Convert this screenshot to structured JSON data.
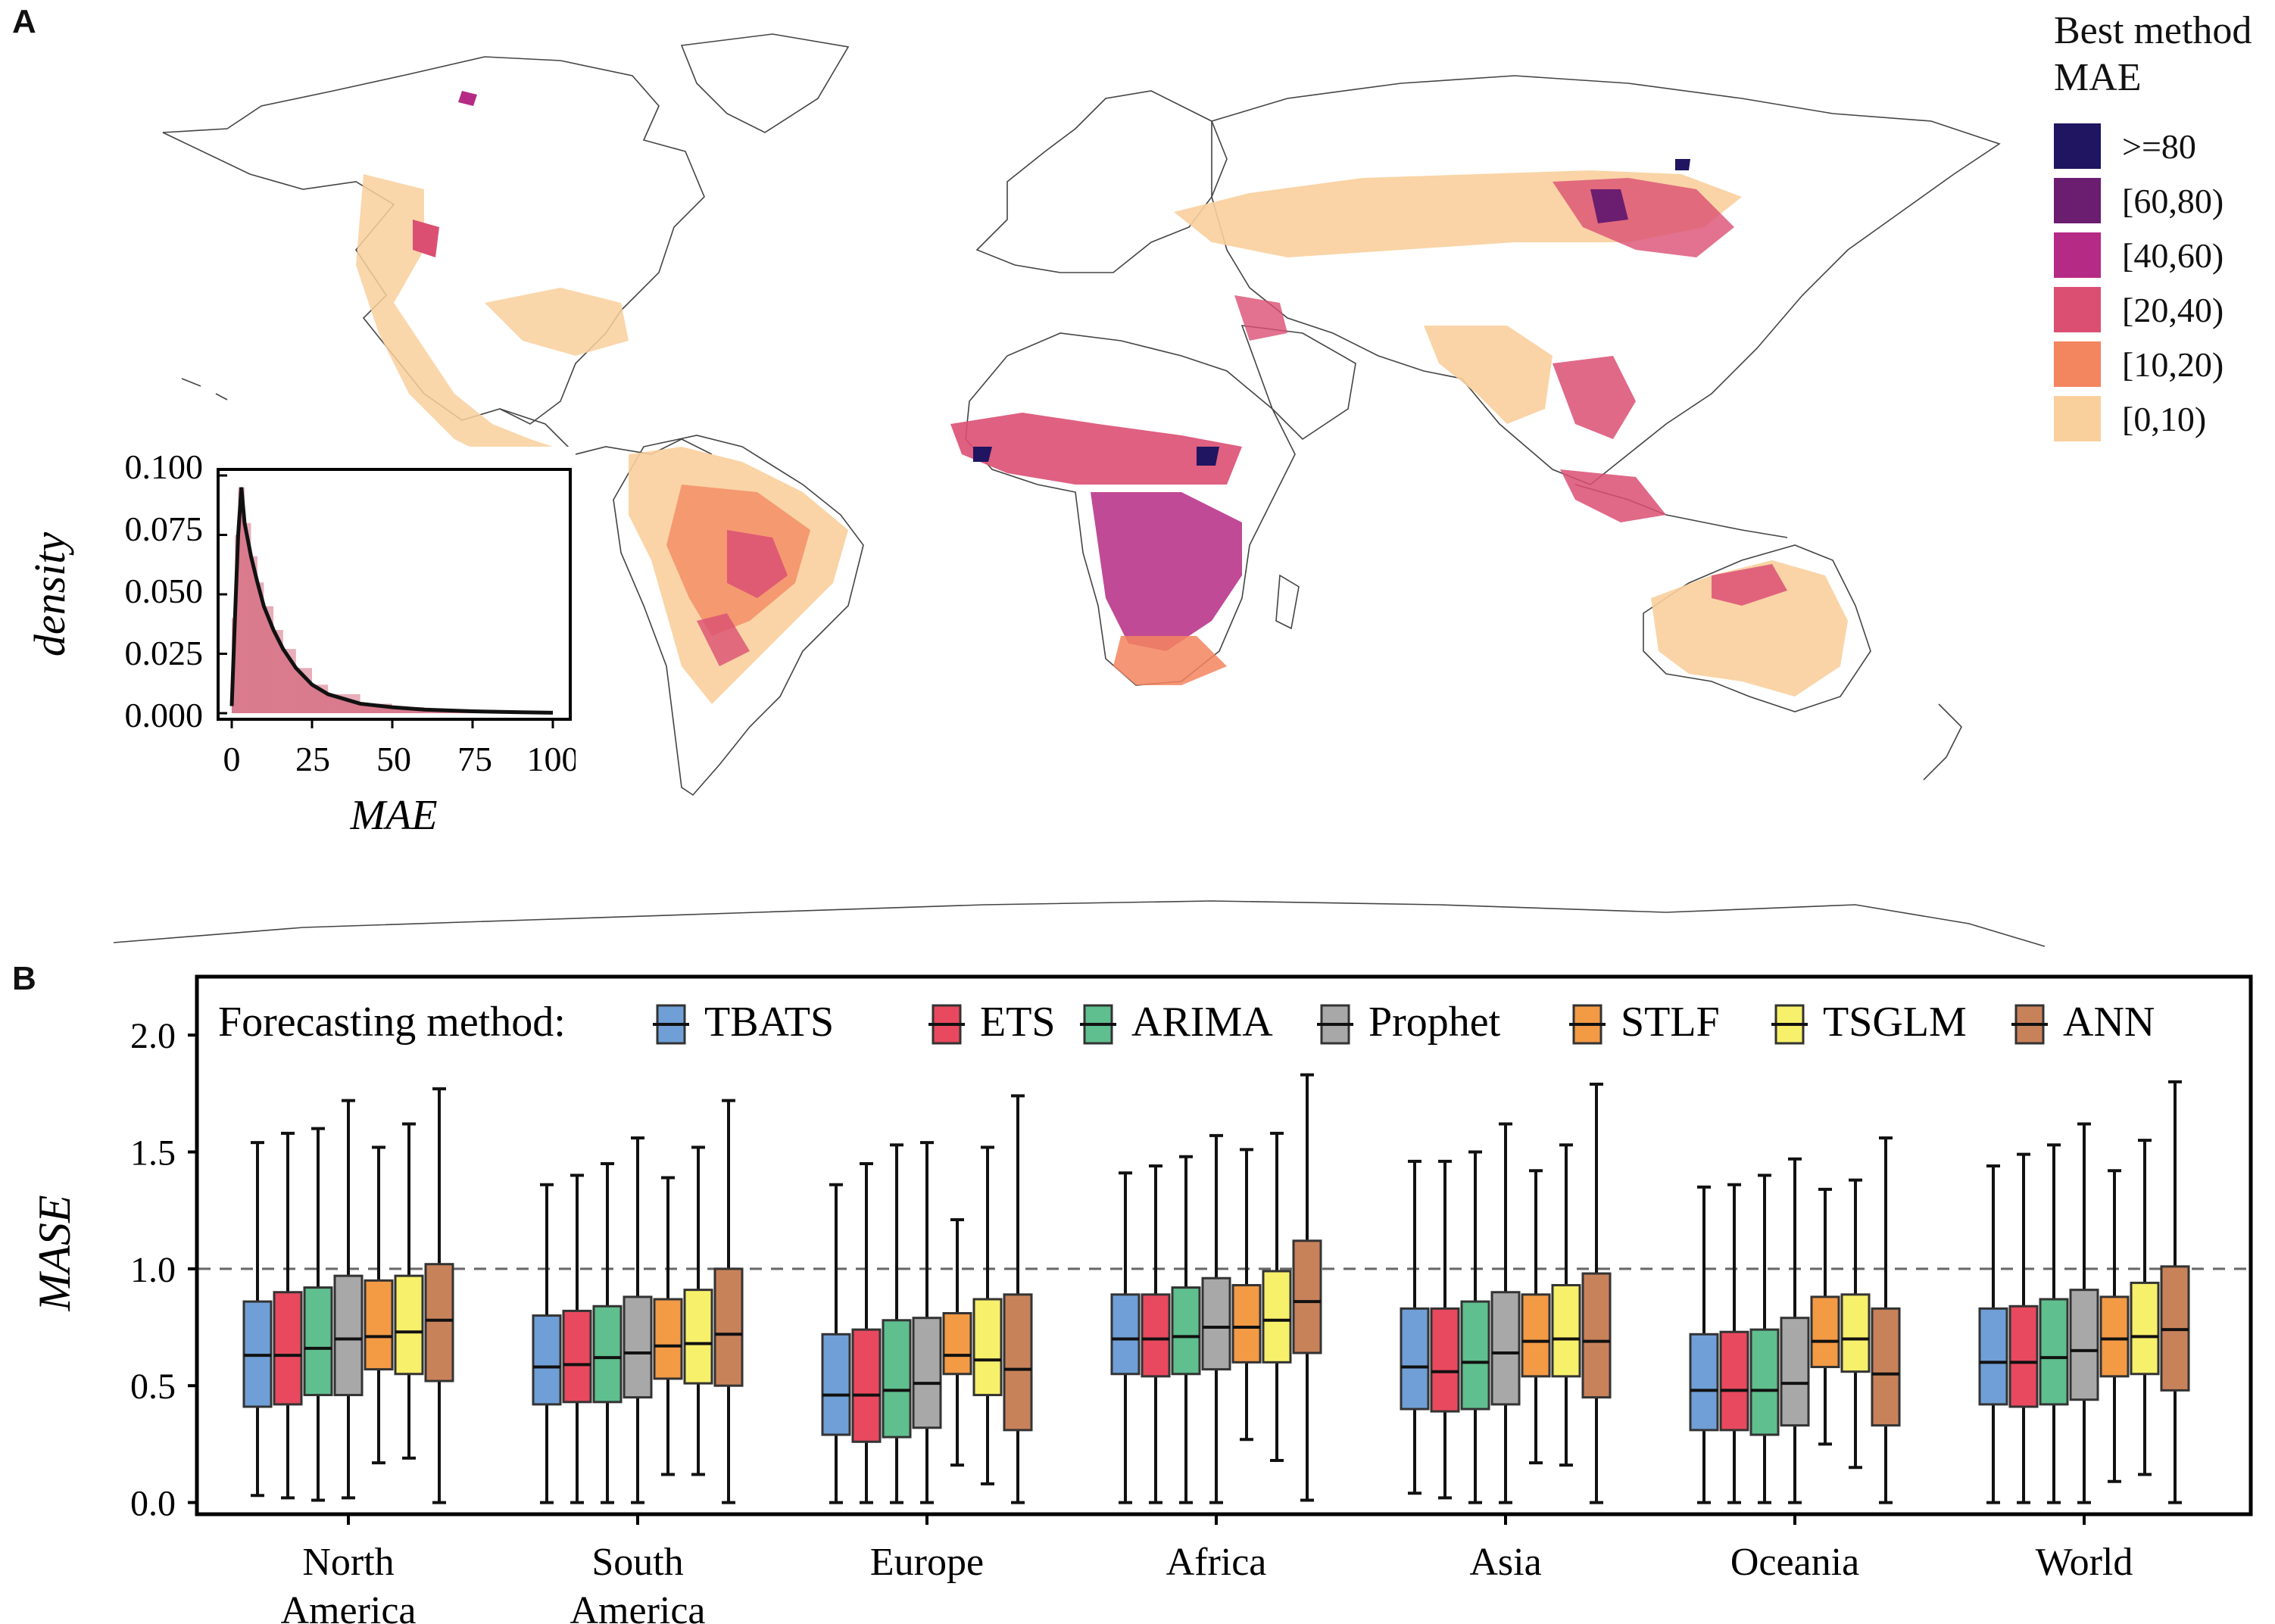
{
  "panels": {
    "a": "A",
    "b": "B"
  },
  "map": {
    "legend_title": [
      "Best method",
      "MAE"
    ],
    "legend_items": [
      {
        "label": ">=80",
        "color": "#1f1560"
      },
      {
        "label": "[60,80)",
        "color": "#6b1d70"
      },
      {
        "label": "[40,60)",
        "color": "#b52a84"
      },
      {
        "label": "[20,40)",
        "color": "#db4f73"
      },
      {
        "label": "[10,20)",
        "color": "#f3855f"
      },
      {
        "label": "[0,10)",
        "color": "#f9cf9c"
      }
    ]
  },
  "inset": {
    "xlabel": "MAE",
    "ylabel": "density",
    "xticks": [
      "0",
      "25",
      "50",
      "75",
      "100"
    ],
    "yticks": [
      "0.000",
      "0.025",
      "0.050",
      "0.075",
      "0.100"
    ],
    "fill_color": "#d4697f"
  },
  "chart_data": [
    {
      "type": "area",
      "title": "",
      "xlabel": "MAE",
      "ylabel": "density",
      "xlim": [
        0,
        100
      ],
      "ylim": [
        0,
        0.1
      ],
      "x": [
        0,
        1,
        2,
        3,
        4,
        6,
        8,
        10,
        13,
        16,
        20,
        25,
        30,
        40,
        50,
        60,
        75,
        90,
        100
      ],
      "y": [
        0.003,
        0.04,
        0.075,
        0.095,
        0.08,
        0.066,
        0.055,
        0.045,
        0.035,
        0.027,
        0.019,
        0.012,
        0.008,
        0.004,
        0.0025,
        0.0015,
        0.0008,
        0.0004,
        0.0002
      ]
    },
    {
      "type": "box",
      "title": "",
      "ylabel": "MASE",
      "ylim": [
        -0.05,
        2.25
      ],
      "yticks": [
        "0.0",
        "0.5",
        "1.0",
        "1.5",
        "2.0"
      ],
      "reference_line": 1.0,
      "legend_title": "Forecasting method:",
      "categories": [
        "North\nAmerica",
        "South\nAmerica",
        "Europe",
        "Africa",
        "Asia",
        "Oceania",
        "World"
      ],
      "series": [
        {
          "name": "TBATS",
          "color": "#6f9fd6",
          "boxes": [
            [
              0.03,
              0.41,
              0.63,
              0.86,
              1.54
            ],
            [
              0.0,
              0.42,
              0.58,
              0.8,
              1.36
            ],
            [
              0.0,
              0.29,
              0.46,
              0.72,
              1.36
            ],
            [
              0.0,
              0.55,
              0.7,
              0.89,
              1.41
            ],
            [
              0.04,
              0.4,
              0.58,
              0.83,
              1.46
            ],
            [
              0.0,
              0.31,
              0.48,
              0.72,
              1.35
            ],
            [
              0.0,
              0.42,
              0.6,
              0.83,
              1.44
            ]
          ]
        },
        {
          "name": "ETS",
          "color": "#e8495e",
          "boxes": [
            [
              0.02,
              0.42,
              0.63,
              0.9,
              1.58
            ],
            [
              0.0,
              0.43,
              0.59,
              0.82,
              1.4
            ],
            [
              0.0,
              0.26,
              0.46,
              0.74,
              1.45
            ],
            [
              0.0,
              0.54,
              0.7,
              0.89,
              1.44
            ],
            [
              0.02,
              0.39,
              0.56,
              0.83,
              1.46
            ],
            [
              0.0,
              0.31,
              0.48,
              0.73,
              1.36
            ],
            [
              0.0,
              0.41,
              0.6,
              0.84,
              1.49
            ]
          ]
        },
        {
          "name": "ARIMA",
          "color": "#5fbf8e",
          "boxes": [
            [
              0.01,
              0.46,
              0.66,
              0.92,
              1.6
            ],
            [
              0.0,
              0.43,
              0.62,
              0.84,
              1.45
            ],
            [
              0.0,
              0.28,
              0.48,
              0.78,
              1.53
            ],
            [
              0.0,
              0.55,
              0.71,
              0.92,
              1.48
            ],
            [
              0.0,
              0.4,
              0.6,
              0.86,
              1.5
            ],
            [
              0.0,
              0.29,
              0.48,
              0.74,
              1.4
            ],
            [
              0.0,
              0.42,
              0.62,
              0.87,
              1.53
            ]
          ]
        },
        {
          "name": "Prophet",
          "color": "#a8a8a8",
          "boxes": [
            [
              0.02,
              0.46,
              0.7,
              0.97,
              1.72
            ],
            [
              0.0,
              0.45,
              0.64,
              0.88,
              1.56
            ],
            [
              0.0,
              0.32,
              0.51,
              0.79,
              1.54
            ],
            [
              0.0,
              0.57,
              0.75,
              0.96,
              1.57
            ],
            [
              0.0,
              0.42,
              0.64,
              0.9,
              1.62
            ],
            [
              0.0,
              0.33,
              0.51,
              0.79,
              1.47
            ],
            [
              0.0,
              0.44,
              0.65,
              0.91,
              1.62
            ]
          ]
        },
        {
          "name": "STLF",
          "color": "#f39a45",
          "boxes": [
            [
              0.17,
              0.57,
              0.71,
              0.95,
              1.52
            ],
            [
              0.12,
              0.53,
              0.67,
              0.87,
              1.39
            ],
            [
              0.16,
              0.55,
              0.63,
              0.81,
              1.21
            ],
            [
              0.27,
              0.6,
              0.75,
              0.93,
              1.51
            ],
            [
              0.17,
              0.54,
              0.69,
              0.89,
              1.42
            ],
            [
              0.25,
              0.58,
              0.69,
              0.88,
              1.34
            ],
            [
              0.09,
              0.54,
              0.7,
              0.88,
              1.42
            ]
          ]
        },
        {
          "name": "TSGLM",
          "color": "#f7f06a",
          "boxes": [
            [
              0.19,
              0.55,
              0.73,
              0.97,
              1.62
            ],
            [
              0.12,
              0.51,
              0.68,
              0.91,
              1.52
            ],
            [
              0.08,
              0.46,
              0.61,
              0.87,
              1.52
            ],
            [
              0.18,
              0.6,
              0.78,
              0.99,
              1.58
            ],
            [
              0.16,
              0.54,
              0.7,
              0.93,
              1.53
            ],
            [
              0.15,
              0.56,
              0.7,
              0.89,
              1.38
            ],
            [
              0.12,
              0.55,
              0.71,
              0.94,
              1.55
            ]
          ]
        },
        {
          "name": "ANN",
          "color": "#c8825a",
          "boxes": [
            [
              0.0,
              0.52,
              0.78,
              1.02,
              1.77
            ],
            [
              0.0,
              0.5,
              0.72,
              1.0,
              1.72
            ],
            [
              0.0,
              0.31,
              0.57,
              0.89,
              1.74
            ],
            [
              0.01,
              0.64,
              0.86,
              1.12,
              1.83
            ],
            [
              0.0,
              0.45,
              0.69,
              0.98,
              1.79
            ],
            [
              0.0,
              0.33,
              0.55,
              0.83,
              1.56
            ],
            [
              0.0,
              0.48,
              0.74,
              1.01,
              1.8
            ]
          ]
        }
      ]
    }
  ]
}
